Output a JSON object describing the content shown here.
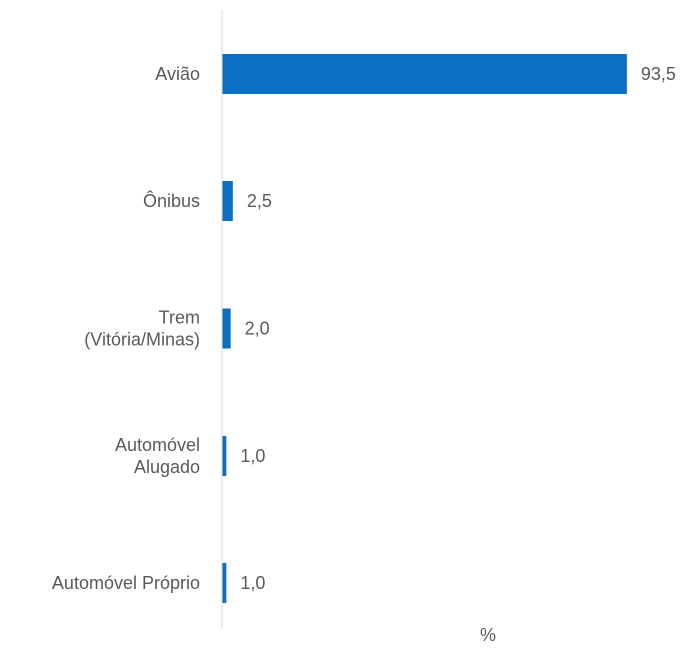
{
  "chart_data": {
    "type": "bar",
    "orientation": "horizontal",
    "categories": [
      [
        "Avião"
      ],
      [
        "Ônibus"
      ],
      [
        "Trem",
        "(Vitória/Minas)"
      ],
      [
        "Automóvel",
        "Alugado"
      ],
      [
        "Automóvel Próprio"
      ]
    ],
    "values": [
      93.5,
      2.5,
      2.0,
      1.0,
      1.0
    ],
    "value_labels": [
      "93,5",
      "2,5",
      "2,0",
      "1,0",
      "1,0"
    ],
    "xlabel": "%",
    "ylabel": "",
    "title": "",
    "xlim": [
      0,
      100
    ],
    "grid": false,
    "legend": "none",
    "bar_color": "#0B6FC4",
    "axis_color": "#D9D9D9",
    "text_color": "#595959"
  }
}
